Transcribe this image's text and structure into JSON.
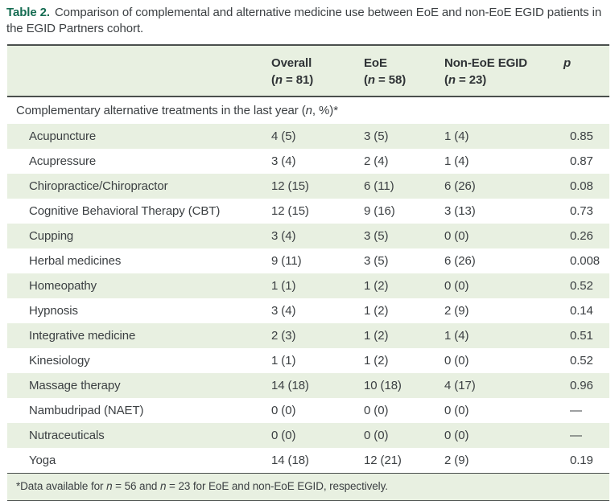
{
  "title": {
    "label": "Table 2.",
    "text": "Comparison of complemental and alternative medicine use between EoE and non-EoE EGID patients in the EGID Partners cohort."
  },
  "header": {
    "columns": [
      {
        "label": "Overall",
        "pre": "(",
        "n": "n",
        "post": " = 81)"
      },
      {
        "label": "EoE",
        "pre": "(",
        "n": "n",
        "post": " = 58)"
      },
      {
        "label": "Non-EoE EGID",
        "pre": "(",
        "n": "n",
        "post": " = 23)"
      },
      {
        "label": "p"
      }
    ]
  },
  "section": {
    "pre": "Complementary alternative treatments in the last year (",
    "n": "n",
    "post": ", %)*"
  },
  "rows": [
    {
      "label": "Acupuncture",
      "overall": "4 (5)",
      "eoe": "3 (5)",
      "non_eoe": "1 (4)",
      "p": "0.85"
    },
    {
      "label": "Acupressure",
      "overall": "3 (4)",
      "eoe": "2 (4)",
      "non_eoe": "1 (4)",
      "p": "0.87"
    },
    {
      "label": "Chiropractice/Chiropractor",
      "overall": "12 (15)",
      "eoe": "6 (11)",
      "non_eoe": "6 (26)",
      "p": "0.08"
    },
    {
      "label": "Cognitive Behavioral Therapy (CBT)",
      "overall": "12 (15)",
      "eoe": "9 (16)",
      "non_eoe": "3 (13)",
      "p": "0.73"
    },
    {
      "label": "Cupping",
      "overall": "3 (4)",
      "eoe": "3 (5)",
      "non_eoe": "0 (0)",
      "p": "0.26"
    },
    {
      "label": "Herbal medicines",
      "overall": "9 (11)",
      "eoe": "3 (5)",
      "non_eoe": "6 (26)",
      "p": "0.008"
    },
    {
      "label": "Homeopathy",
      "overall": "1 (1)",
      "eoe": "1 (2)",
      "non_eoe": "0 (0)",
      "p": "0.52"
    },
    {
      "label": "Hypnosis",
      "overall": "3 (4)",
      "eoe": "1 (2)",
      "non_eoe": "2 (9)",
      "p": "0.14"
    },
    {
      "label": "Integrative medicine",
      "overall": "2 (3)",
      "eoe": "1 (2)",
      "non_eoe": "1 (4)",
      "p": "0.51"
    },
    {
      "label": "Kinesiology",
      "overall": "1 (1)",
      "eoe": "1 (2)",
      "non_eoe": "0 (0)",
      "p": "0.52"
    },
    {
      "label": "Massage therapy",
      "overall": "14 (18)",
      "eoe": "10 (18)",
      "non_eoe": "4 (17)",
      "p": "0.96"
    },
    {
      "label": "Nambudripad (NAET)",
      "overall": "0 (0)",
      "eoe": "0 (0)",
      "non_eoe": "0 (0)",
      "p": "—"
    },
    {
      "label": "Nutraceuticals",
      "overall": "0 (0)",
      "eoe": "0 (0)",
      "non_eoe": "0 (0)",
      "p": "—"
    },
    {
      "label": "Yoga",
      "overall": "14 (18)",
      "eoe": "12 (21)",
      "non_eoe": "2 (9)",
      "p": "0.19"
    }
  ],
  "footnote": {
    "s1": "*Data available for ",
    "n1": "n",
    "s2": " = 56 and ",
    "n2": "n",
    "s3": " = 23 for EoE and non-EoE EGID, respectively."
  },
  "colors": {
    "row_green": "#e8f0e1",
    "title_green": "#156c52",
    "rule_dark": "#4a4f4d",
    "text": "#3c4043"
  }
}
